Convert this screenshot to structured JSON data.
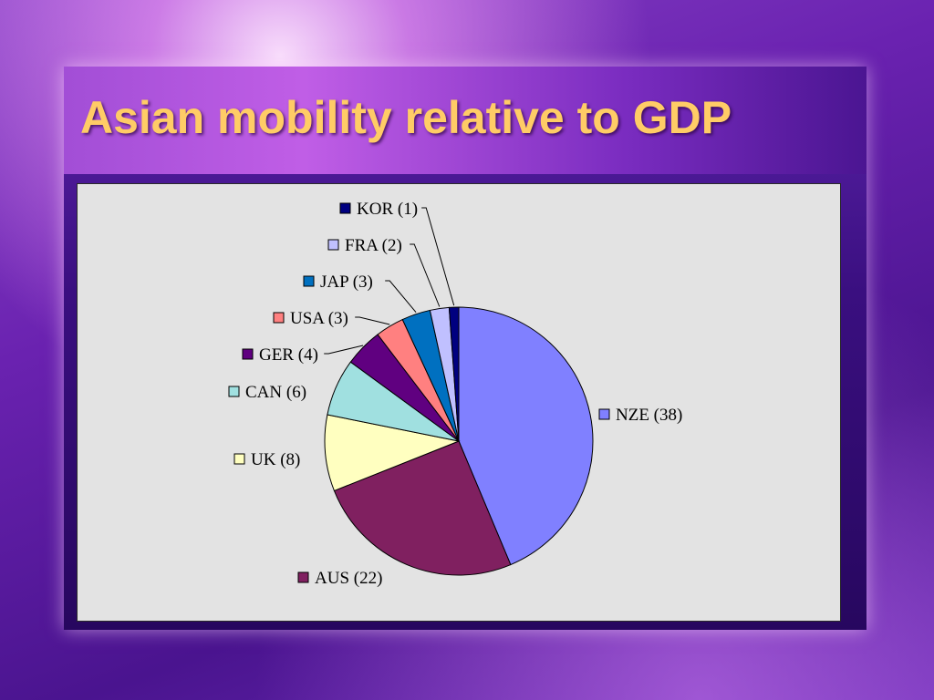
{
  "slide": {
    "title": "Asian mobility relative to GDP"
  },
  "chart_data": {
    "type": "pie",
    "title": "",
    "slices": [
      {
        "label": "NZE (38)",
        "value": 38,
        "color": "#8080ff"
      },
      {
        "label": "AUS (22)",
        "value": 22,
        "color": "#802060"
      },
      {
        "label": "UK (8)",
        "value": 8,
        "color": "#ffffc0"
      },
      {
        "label": "CAN (6)",
        "value": 6,
        "color": "#a0e0e0"
      },
      {
        "label": "GER (4)",
        "value": 4,
        "color": "#600080"
      },
      {
        "label": "USA (3)",
        "value": 3,
        "color": "#ff8080"
      },
      {
        "label": "JAP (3)",
        "value": 3,
        "color": "#0070c0"
      },
      {
        "label": "FRA (2)",
        "value": 2,
        "color": "#c0c0ff"
      },
      {
        "label": "KOR (1)",
        "value": 1,
        "color": "#000080"
      }
    ],
    "legend": "labels beside slices with color keys"
  }
}
